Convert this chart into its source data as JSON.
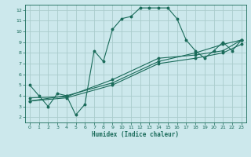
{
  "xlabel": "Humidex (Indice chaleur)",
  "bg_color": "#cce8ec",
  "grid_color": "#aacccc",
  "line_color": "#1a6b5a",
  "xlim": [
    -0.5,
    23.5
  ],
  "ylim": [
    1.5,
    12.5
  ],
  "xticks": [
    0,
    1,
    2,
    3,
    4,
    5,
    6,
    7,
    8,
    9,
    10,
    11,
    12,
    13,
    14,
    15,
    16,
    17,
    18,
    19,
    20,
    21,
    22,
    23
  ],
  "yticks": [
    2,
    3,
    4,
    5,
    6,
    7,
    8,
    9,
    10,
    11,
    12
  ],
  "line1_x": [
    0,
    1,
    2,
    3,
    4,
    5,
    6,
    7,
    8,
    9,
    10,
    11,
    12,
    13,
    14,
    15,
    16,
    17,
    18,
    19,
    20,
    21,
    22,
    23
  ],
  "line1_y": [
    5.0,
    4.0,
    3.0,
    4.2,
    4.0,
    2.2,
    3.2,
    8.2,
    7.2,
    10.2,
    11.2,
    11.4,
    12.2,
    12.2,
    12.2,
    12.2,
    11.2,
    9.2,
    8.2,
    7.5,
    8.2,
    9.0,
    8.2,
    9.2
  ],
  "line2_x": [
    0,
    4,
    9,
    14,
    18,
    21,
    23
  ],
  "line2_y": [
    3.5,
    4.0,
    5.2,
    7.2,
    8.0,
    8.8,
    9.2
  ],
  "line3_x": [
    0,
    4,
    9,
    14,
    18,
    21,
    23
  ],
  "line3_y": [
    3.8,
    3.9,
    5.5,
    7.5,
    7.8,
    8.2,
    9.2
  ],
  "line4_x": [
    0,
    4,
    9,
    14,
    18,
    21,
    23
  ],
  "line4_y": [
    3.5,
    3.8,
    5.0,
    7.0,
    7.5,
    8.0,
    8.8
  ]
}
